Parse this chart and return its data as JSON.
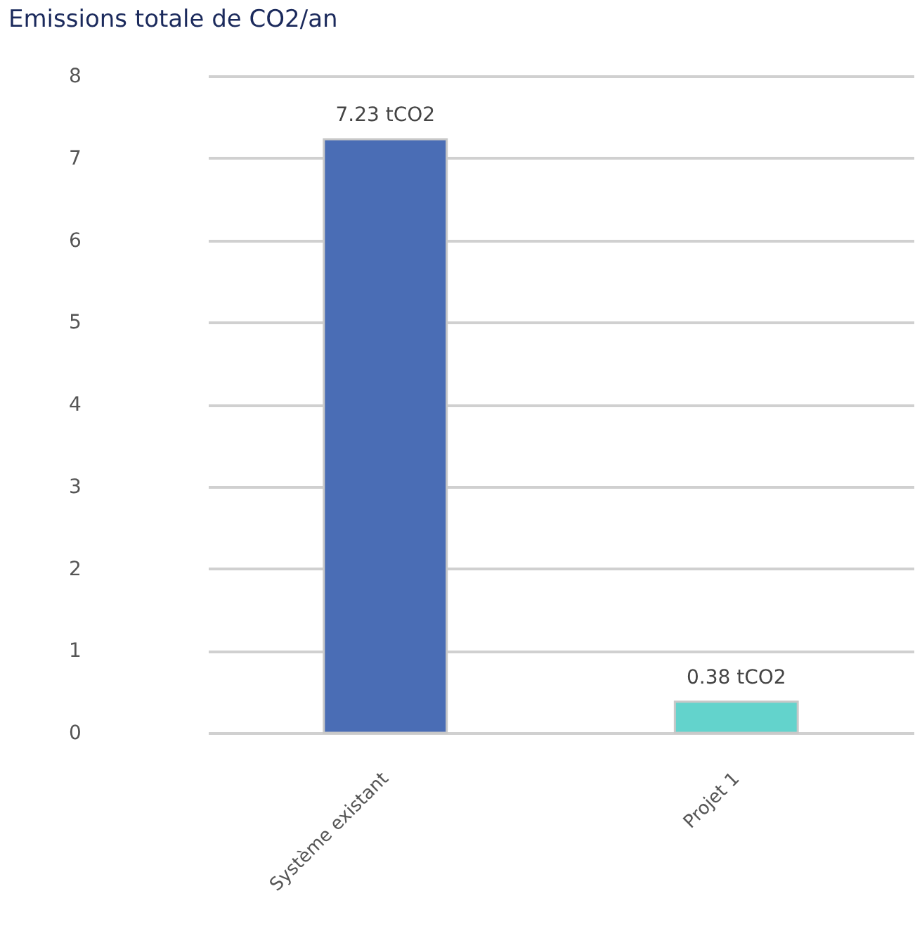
{
  "chart_data": {
    "type": "bar",
    "title": "Emissions totale de CO2/an",
    "categories": [
      "Système existant",
      "Projet 1"
    ],
    "values": [
      7.23,
      0.38
    ],
    "colors": [
      "#4a6db5",
      "#63d3cc"
    ],
    "value_labels": [
      "7.23 tCO2",
      "0.38 tCO2"
    ],
    "ylim": [
      0,
      8
    ],
    "yticks": [
      0,
      1,
      2,
      3,
      4,
      5,
      6,
      7,
      8
    ],
    "grid": "y"
  }
}
